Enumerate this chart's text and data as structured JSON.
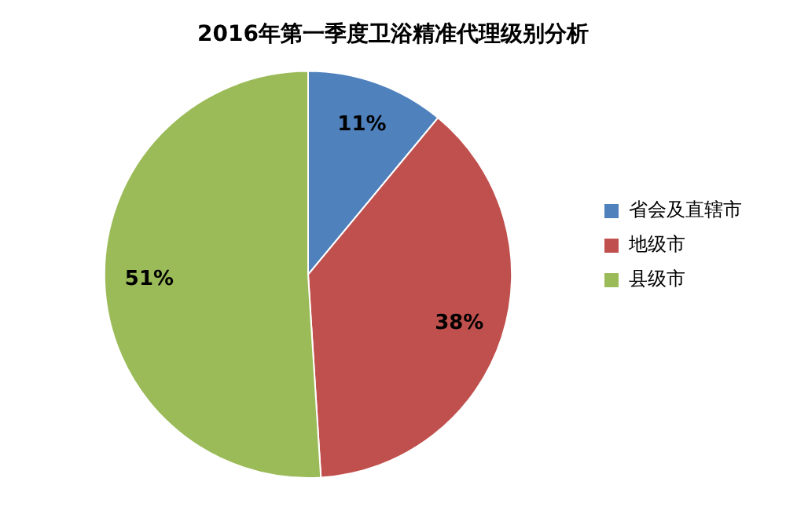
{
  "chart_data": {
    "type": "pie",
    "title": "2016年第一季度卫浴精准代理级别分析",
    "categories": [
      "省会及直辖市",
      "地级市",
      "县级市"
    ],
    "values": [
      11,
      38,
      51
    ],
    "colors": [
      "#4f81bd",
      "#c0504d",
      "#9bbb59"
    ],
    "value_labels": [
      "11%",
      "38%",
      "51%"
    ],
    "legend": "right"
  }
}
